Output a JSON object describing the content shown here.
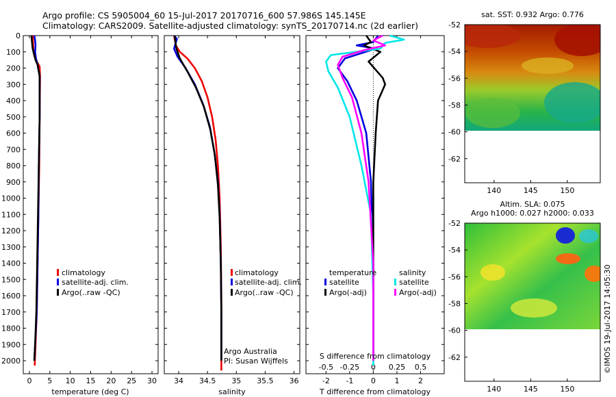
{
  "title_line1": "Argo profile: CS 5905004_60 15-Jul-2017 20170716_600 57.986S 145.145E",
  "title_line2": "Climatology: CARS2009. Satellite-adjusted climatology: synTS_20170714.nc (2d earlier)",
  "stamp": "©IMOS 19-Jul-2017 14:05:30",
  "credit": [
    "Argo Australia",
    "PI: Susan Wijffels"
  ],
  "colors": {
    "climatology": "#ee0000",
    "satellite": "#0000dd",
    "argo": "#000000",
    "sat_sal": "#00e6e6",
    "argo_sal": "#ff00ff"
  },
  "chart_data": [
    {
      "type": "line",
      "xlabel": "temperature (deg C)",
      "xlim": [
        -1.5,
        31.5
      ],
      "xticks": [
        0,
        5,
        10,
        15,
        20,
        25,
        30
      ],
      "ylim": [
        0,
        2080
      ],
      "yticks": [
        0,
        100,
        200,
        300,
        400,
        500,
        600,
        700,
        800,
        900,
        1000,
        1100,
        1200,
        1300,
        1400,
        1500,
        1600,
        1700,
        1800,
        1900,
        2000
      ],
      "legend": [
        "climatology",
        "satellite-adj. clim.",
        "Argo(..raw -QC)"
      ],
      "series": [
        {
          "name": "climatology",
          "color": "#ee0000",
          "x": [
            0.8,
            0.9,
            1.0,
            1.3,
            1.8,
            2.5,
            2.6,
            2.5,
            2.4,
            2.2,
            2.0,
            1.8,
            1.5,
            1.3
          ],
          "y": [
            0,
            40,
            100,
            130,
            160,
            190,
            250,
            500,
            800,
            1100,
            1400,
            1700,
            1900,
            2030
          ]
        },
        {
          "name": "satellite-adj. clim.",
          "color": "#0000dd",
          "x": [
            1.2,
            1.4,
            1.5,
            1.4,
            1.6,
            2.0,
            2.5,
            2.5,
            2.3,
            2.2,
            2.0,
            1.8,
            1.4,
            1.2
          ],
          "y": [
            0,
            30,
            60,
            100,
            140,
            180,
            250,
            500,
            800,
            1100,
            1400,
            1700,
            1900,
            2000
          ]
        },
        {
          "name": "Argo(..raw -QC)",
          "color": "#000000",
          "x": [
            0.5,
            0.6,
            0.8,
            1.2,
            1.5,
            2.0,
            2.5,
            2.5,
            2.3,
            2.1,
            1.9,
            1.7,
            1.4,
            1.2
          ],
          "y": [
            0,
            30,
            80,
            120,
            150,
            180,
            250,
            500,
            800,
            1100,
            1400,
            1700,
            1900,
            2000
          ]
        }
      ]
    },
    {
      "type": "line",
      "xlabel": "salinity",
      "xlim": [
        33.75,
        36.1
      ],
      "xticks": [
        34,
        34.5,
        35,
        35.5,
        36
      ],
      "ylim": [
        0,
        2080
      ],
      "legend": [
        "climatology",
        "satellite-adj. clim.",
        "Argo(..raw -QC)"
      ],
      "series": [
        {
          "name": "climatology",
          "color": "#ee0000",
          "x": [
            33.92,
            33.95,
            34.02,
            34.15,
            34.28,
            34.4,
            34.5,
            34.58,
            34.64,
            34.68,
            34.71,
            34.73,
            34.74,
            34.74,
            34.74
          ],
          "y": [
            0,
            60,
            100,
            140,
            200,
            280,
            380,
            500,
            640,
            800,
            1000,
            1300,
            1600,
            1900,
            2060
          ]
        },
        {
          "name": "satellite-adj. clim.",
          "color": "#0000dd",
          "x": [
            33.92,
            33.97,
            33.92,
            33.98,
            34.12,
            34.28,
            34.42,
            34.54,
            34.62,
            34.68,
            34.71,
            34.73,
            34.74,
            34.74
          ],
          "y": [
            0,
            20,
            80,
            130,
            200,
            300,
            420,
            560,
            720,
            900,
            1100,
            1400,
            1700,
            2000
          ]
        },
        {
          "name": "Argo(..raw -QC)",
          "color": "#000000",
          "x": [
            33.93,
            33.94,
            33.96,
            34.02,
            34.15,
            34.3,
            34.44,
            34.55,
            34.63,
            34.68,
            34.71,
            34.73,
            34.74,
            34.74
          ],
          "y": [
            0,
            30,
            80,
            140,
            220,
            320,
            440,
            580,
            740,
            920,
            1120,
            1400,
            1700,
            2000
          ]
        }
      ]
    },
    {
      "type": "line",
      "xlabel": "T difference from climatology",
      "xlabel_top": "S difference from climatology",
      "xlim": [
        -2.85,
        3.0
      ],
      "xticks": [
        -2,
        -1,
        0,
        1,
        2
      ],
      "xticks_top": [
        "-0.5",
        "-0.25",
        "0",
        "0.25",
        "0.5"
      ],
      "ylim": [
        0,
        2080
      ],
      "legend_left": [
        "temperature",
        "satellite",
        "Argo(-adj)"
      ],
      "legend_right": [
        "salinity",
        "satellite",
        "Argo(-adj)"
      ],
      "series": [
        {
          "name": "satellite",
          "color": "#0000dd",
          "x": [
            0.2,
            0.0,
            -0.7,
            0.1,
            -1.2,
            -1.5,
            -1.1,
            -0.7,
            -0.3,
            -0.1,
            0.0,
            0.0
          ],
          "y": [
            0,
            40,
            60,
            80,
            140,
            200,
            280,
            400,
            600,
            900,
            1400,
            2000
          ]
        },
        {
          "name": "Argo(-adj)",
          "color": "#000000",
          "x": [
            -0.3,
            -0.1,
            -0.4,
            0.3,
            -0.2,
            0.4,
            0.5,
            0.2,
            0.1,
            0.0,
            0.0,
            0.0
          ],
          "y": [
            0,
            40,
            60,
            100,
            160,
            260,
            300,
            400,
            600,
            900,
            1400,
            2000
          ]
        },
        {
          "name": "satellite (S)",
          "color": "#00e6e6",
          "x": [
            0.7,
            1.3,
            0.5,
            0.3,
            -1.8,
            -2.0,
            -1.9,
            -1.5,
            -1.0,
            -0.5,
            -0.1,
            0.0,
            0.0
          ],
          "y": [
            0,
            25,
            45,
            80,
            120,
            160,
            220,
            320,
            500,
            800,
            1100,
            1600,
            2030
          ]
        },
        {
          "name": "Argo(-adj) (S)",
          "color": "#ff00ff",
          "x": [
            0.4,
            0.0,
            0.5,
            -0.4,
            -1.3,
            -1.5,
            -1.3,
            -0.9,
            -0.5,
            -0.2,
            0.0,
            0.0
          ],
          "y": [
            0,
            30,
            60,
            90,
            130,
            180,
            260,
            380,
            600,
            900,
            1400,
            2000
          ]
        }
      ]
    },
    {
      "type": "heatmap",
      "title": "sat. SST: 0.932  Argo: 0.776",
      "xlim": [
        136,
        154.5
      ],
      "ylim": [
        -63.8,
        -52
      ],
      "xticks": [
        140,
        145,
        150
      ],
      "yticks": [
        -52,
        -54,
        -56,
        -58,
        -60,
        -62
      ]
    },
    {
      "type": "heatmap",
      "title": [
        "Altim. SLA: 0.075",
        "Argo h1000: 0.027 h2000: 0.033"
      ],
      "xlim": [
        136,
        154.5
      ],
      "ylim": [
        -63.8,
        -52
      ],
      "xticks": [
        140,
        145,
        150
      ],
      "yticks": [
        -52,
        -54,
        -56,
        -58,
        -60,
        -62
      ]
    }
  ]
}
